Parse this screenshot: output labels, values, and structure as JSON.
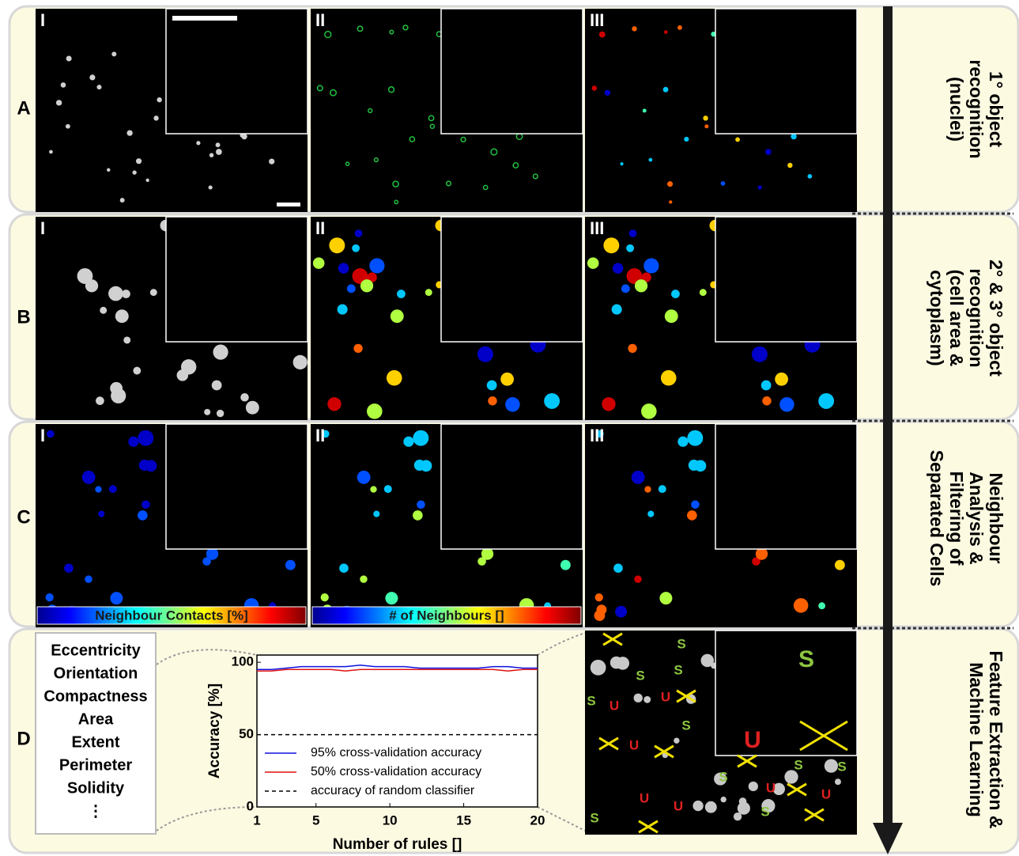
{
  "rows": [
    {
      "label": "A",
      "stage": [
        "1° object",
        "recognition",
        "(nuclei)"
      ]
    },
    {
      "label": "B",
      "stage": [
        "2° & 3° object",
        "recognition",
        "(cell  area &",
        "cytoplasm)"
      ]
    },
    {
      "label": "C",
      "stage": [
        "Neighbour",
        "Analysis &",
        "Filtering of",
        "Separated Cells"
      ]
    },
    {
      "label": "D",
      "stage": [
        "Feature Extraction &",
        "Machine Learning"
      ]
    }
  ],
  "numerals": [
    "I",
    "II",
    "III"
  ],
  "colorbars": [
    "Neighbour Contacts [%]",
    "# of Neighbours []"
  ],
  "features": [
    "Eccentricity",
    "Orientation",
    "Compactness",
    "Area",
    "Extent",
    "Perimeter",
    "Solidity",
    "⋮"
  ],
  "classification_marks": [
    "S",
    "S",
    "S",
    "S",
    "S",
    "S",
    "S",
    "S",
    "S",
    "S",
    "S",
    "U",
    "U",
    "U",
    "U",
    "U",
    "U",
    "U",
    "U"
  ],
  "chart_data": {
    "type": "line",
    "xlabel": "Number of rules []",
    "ylabel": "Accuracy [%]",
    "x": [
      1,
      2,
      3,
      4,
      5,
      6,
      7,
      8,
      9,
      10,
      11,
      12,
      13,
      14,
      15,
      16,
      17,
      18,
      19,
      20
    ],
    "xlim": [
      1,
      20
    ],
    "xticks": [
      1,
      5,
      10,
      15,
      20
    ],
    "ylim": [
      0,
      105
    ],
    "yticks": [
      0,
      50,
      100
    ],
    "series": [
      {
        "name": "95% cross-validation accuracy",
        "color": "#1010e0",
        "dash": false,
        "values": [
          95,
          95,
          96,
          97,
          97,
          97,
          97,
          98,
          97,
          97,
          97,
          96,
          96,
          96,
          96,
          96,
          97,
          97,
          96,
          96
        ]
      },
      {
        "name": "50% cross-validation accuracy",
        "color": "#e01010",
        "dash": false,
        "values": [
          94,
          94,
          95,
          95,
          95,
          95,
          94,
          95,
          95,
          95,
          95,
          95,
          95,
          95,
          95,
          95,
          95,
          94,
          95,
          95
        ]
      },
      {
        "name": "accuracy of random classifier",
        "color": "#000000",
        "dash": true,
        "values": [
          50,
          50,
          50,
          50,
          50,
          50,
          50,
          50,
          50,
          50,
          50,
          50,
          50,
          50,
          50,
          50,
          50,
          50,
          50,
          50
        ]
      }
    ]
  }
}
